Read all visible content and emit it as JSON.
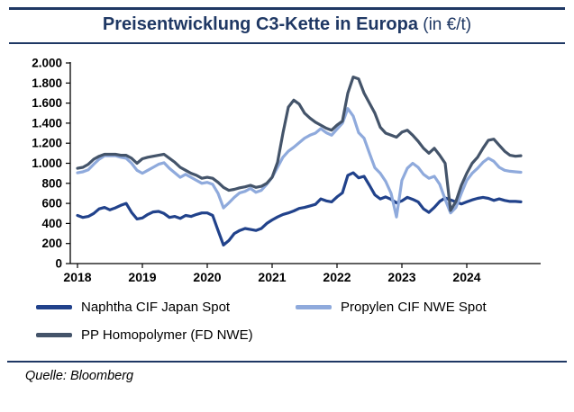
{
  "title": {
    "main": "Preisentwicklung C3-Kette in Europa",
    "unit": " (in €/t)"
  },
  "source": "Quelle: Bloomberg",
  "colors": {
    "accent": "#1f3864",
    "naphtha": "#21428b",
    "propylen": "#8faadc",
    "pp": "#44546a"
  },
  "legend": [
    {
      "label": "Naphtha CIF Japan Spot",
      "series": "naphtha"
    },
    {
      "label": "Propylen CIF NWE Spot",
      "series": "propylen"
    },
    {
      "label": "PP Homopolymer (FD NWE)",
      "series": "pp"
    }
  ],
  "chart_data": {
    "type": "line",
    "title": "Preisentwicklung C3-Kette in Europa (in €/t)",
    "x_start": "2018-01",
    "x_step": "monthly",
    "x_tick_labels": [
      "2018",
      "2019",
      "2020",
      "2021",
      "2022",
      "2023",
      "2024"
    ],
    "y_tick_values": [
      0,
      200,
      400,
      600,
      800,
      1000,
      1200,
      1400,
      1600,
      1800,
      2000
    ],
    "y_tick_labels": [
      "0",
      "200",
      "400",
      "600",
      "800",
      "1.000",
      "1.200",
      "1.400",
      "1.600",
      "1.800",
      "2.000"
    ],
    "ylim": [
      0,
      2000
    ],
    "grid": false,
    "legend_position": "bottom",
    "series": [
      {
        "name": "Naphtha CIF Japan Spot",
        "color_key": "naphtha",
        "values": [
          480,
          460,
          470,
          500,
          545,
          560,
          535,
          555,
          580,
          600,
          510,
          445,
          455,
          490,
          515,
          520,
          500,
          460,
          470,
          450,
          480,
          470,
          490,
          505,
          505,
          480,
          330,
          185,
          230,
          300,
          330,
          350,
          340,
          330,
          350,
          400,
          435,
          465,
          490,
          505,
          525,
          550,
          560,
          575,
          590,
          645,
          625,
          615,
          665,
          705,
          880,
          905,
          855,
          870,
          780,
          685,
          645,
          665,
          640,
          605,
          625,
          660,
          640,
          615,
          545,
          510,
          560,
          620,
          655,
          635,
          615,
          595,
          615,
          635,
          650,
          660,
          650,
          630,
          645,
          630,
          620,
          620,
          615
        ]
      },
      {
        "name": "Propylen CIF NWE Spot",
        "color_key": "propylen",
        "values": [
          905,
          915,
          935,
          990,
          1040,
          1075,
          1075,
          1075,
          1060,
          1050,
          1000,
          930,
          900,
          930,
          960,
          990,
          1005,
          950,
          905,
          860,
          890,
          860,
          830,
          800,
          810,
          790,
          700,
          555,
          605,
          660,
          705,
          720,
          750,
          710,
          730,
          790,
          860,
          960,
          1060,
          1120,
          1160,
          1205,
          1250,
          1280,
          1300,
          1345,
          1305,
          1280,
          1340,
          1400,
          1545,
          1470,
          1305,
          1250,
          1100,
          955,
          900,
          820,
          700,
          465,
          830,
          950,
          1000,
          960,
          890,
          850,
          870,
          790,
          640,
          505,
          560,
          700,
          830,
          900,
          950,
          1010,
          1050,
          1020,
          960,
          930,
          920,
          915,
          910
        ]
      },
      {
        "name": "PP Homopolymer (FD NWE)",
        "color_key": "pp",
        "values": [
          950,
          960,
          990,
          1040,
          1070,
          1090,
          1090,
          1090,
          1080,
          1080,
          1050,
          1000,
          1045,
          1060,
          1070,
          1080,
          1090,
          1050,
          1010,
          960,
          930,
          900,
          880,
          850,
          860,
          850,
          810,
          760,
          730,
          740,
          755,
          765,
          780,
          760,
          770,
          800,
          860,
          1010,
          1300,
          1560,
          1630,
          1590,
          1500,
          1450,
          1410,
          1380,
          1350,
          1330,
          1380,
          1420,
          1700,
          1860,
          1840,
          1700,
          1600,
          1500,
          1360,
          1300,
          1280,
          1260,
          1310,
          1330,
          1280,
          1220,
          1150,
          1100,
          1150,
          1080,
          1000,
          530,
          620,
          780,
          900,
          1000,
          1060,
          1150,
          1230,
          1240,
          1180,
          1120,
          1080,
          1070,
          1075
        ]
      }
    ]
  }
}
